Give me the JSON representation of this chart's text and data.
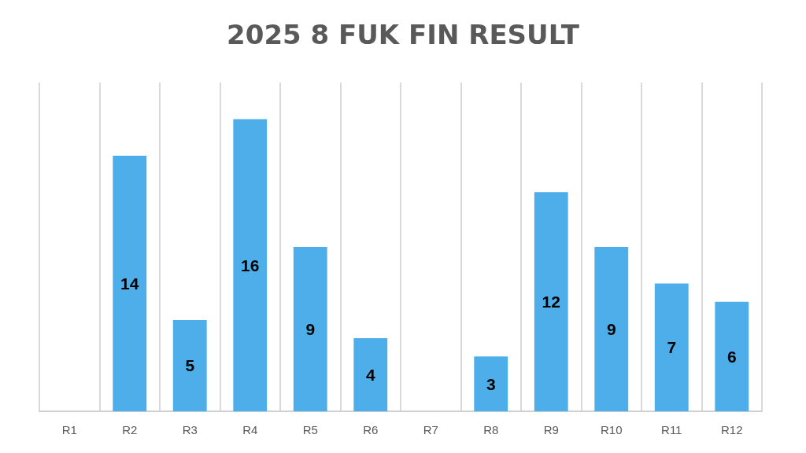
{
  "chart_data": {
    "type": "bar",
    "title": "2025 8 FUK FIN RESULT",
    "categories": [
      "R1",
      "R2",
      "R3",
      "R4",
      "R5",
      "R6",
      "R7",
      "R8",
      "R9",
      "R10",
      "R11",
      "R12"
    ],
    "values": [
      null,
      14,
      5,
      16,
      9,
      4,
      null,
      3,
      12,
      9,
      7,
      6
    ],
    "color": "#4eaeea",
    "ylim": [
      0,
      18
    ],
    "grid": "x",
    "tick_labels": "x",
    "data_labels": true
  }
}
